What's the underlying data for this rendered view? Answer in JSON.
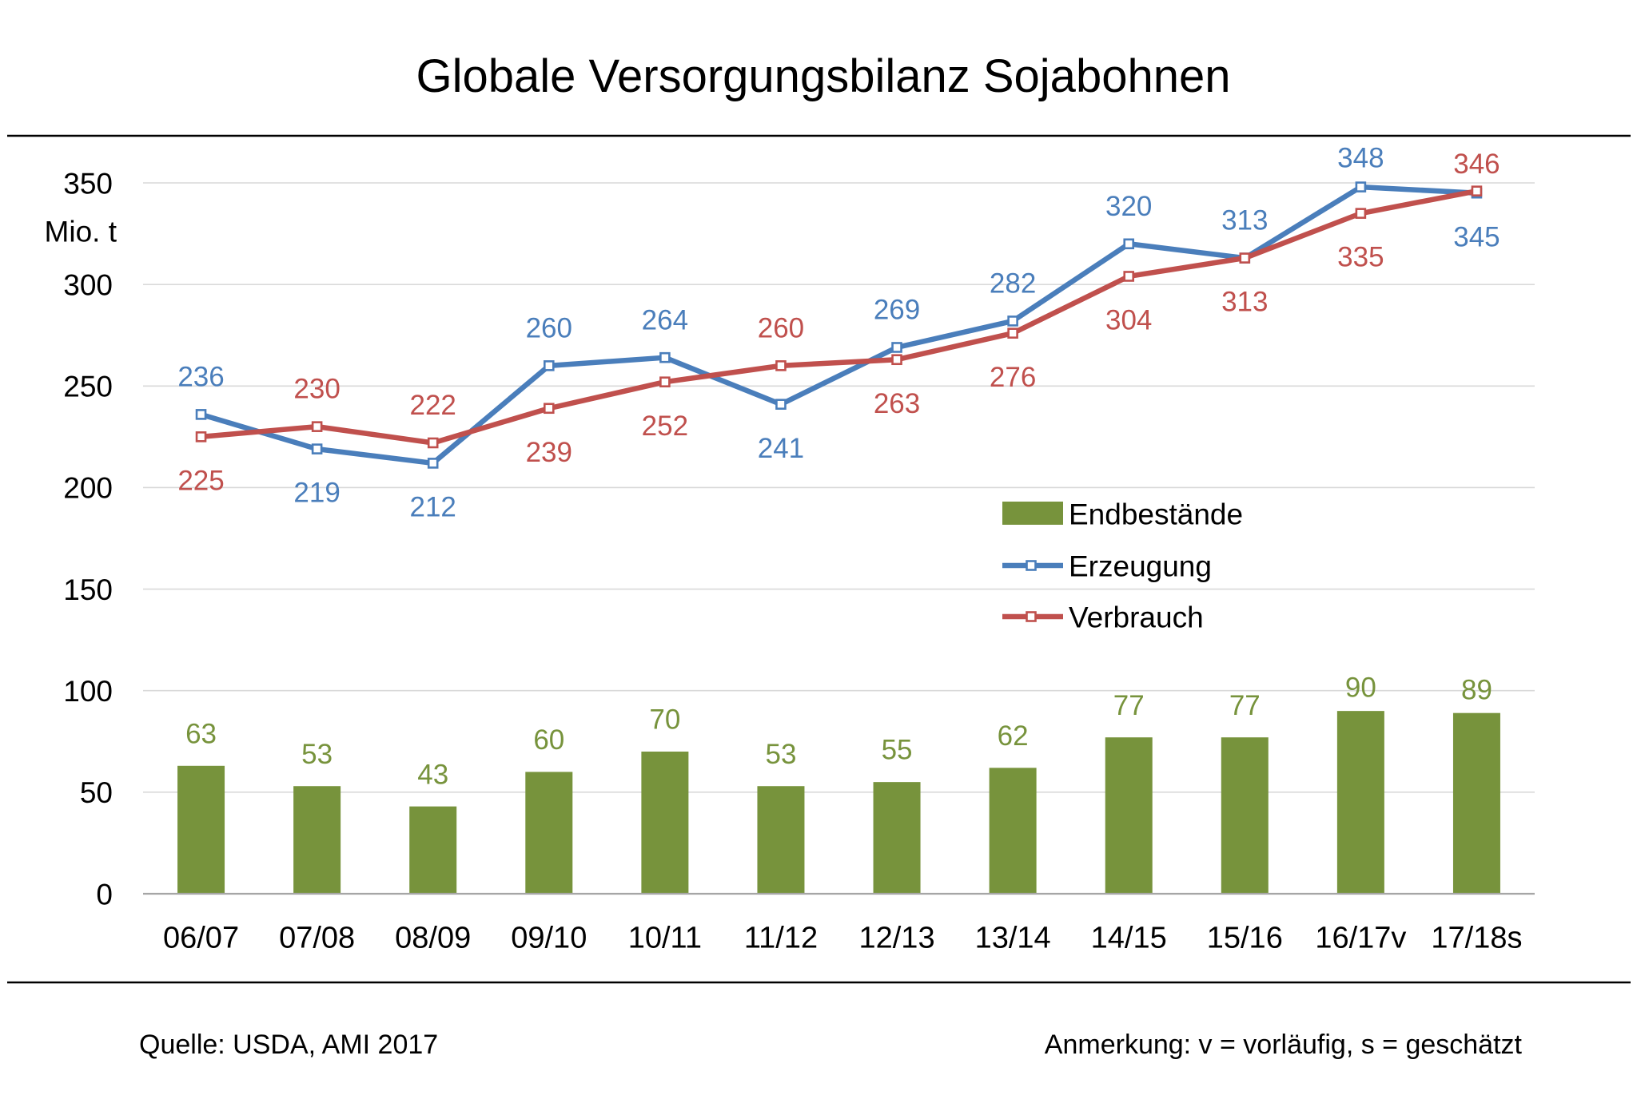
{
  "chart_data": {
    "type": "bar",
    "title": "Globale Versorgungsbilanz Sojabohnen",
    "ylabel": "Mio. t",
    "ylim": [
      0,
      350
    ],
    "yticks": [
      0,
      50,
      100,
      150,
      200,
      250,
      300,
      350
    ],
    "grid": true,
    "legend": "center-right",
    "categories": [
      "06/07",
      "07/08",
      "08/09",
      "09/10",
      "10/11",
      "11/12",
      "12/13",
      "13/14",
      "14/15",
      "15/16",
      "16/17v",
      "17/18s"
    ],
    "series": [
      {
        "name": "Endbestände",
        "type": "bar",
        "color": "#77933C",
        "values": [
          63,
          53,
          43,
          60,
          70,
          53,
          55,
          62,
          77,
          77,
          90,
          89
        ]
      },
      {
        "name": "Erzeugung",
        "type": "line",
        "color": "#4A7EBB",
        "values": [
          236,
          219,
          212,
          260,
          264,
          241,
          269,
          282,
          320,
          313,
          348,
          345
        ]
      },
      {
        "name": "Verbrauch",
        "type": "line",
        "color": "#C0504D",
        "values": [
          225,
          230,
          222,
          239,
          252,
          260,
          263,
          276,
          304,
          313,
          335,
          346
        ]
      }
    ]
  },
  "footer": {
    "source": "Quelle: USDA, AMI 2017",
    "note": "Anmerkung: v = vorläufig, s = geschätzt"
  }
}
